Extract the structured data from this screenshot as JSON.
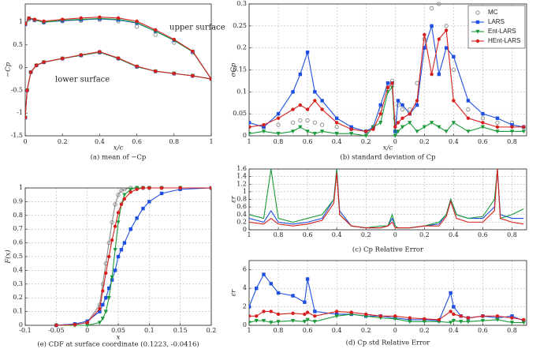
{
  "chart_data": [
    {
      "type": "line",
      "title": "(a) mean of −Cp",
      "xlabel": "x/c",
      "ylabel": "−Cp",
      "annotations": [
        "upper surface",
        "lower surface"
      ],
      "xlim": [
        0,
        1
      ],
      "xticks": [
        0,
        0.2,
        0.4,
        0.6,
        0.8,
        1
      ],
      "ylim": [
        -1.5,
        1.4
      ],
      "yticks": [
        -1.5,
        -1,
        -0.5,
        0,
        0.5,
        1
      ],
      "grid": false,
      "x": [
        0,
        0.01,
        0.03,
        0.06,
        0.1,
        0.2,
        0.3,
        0.4,
        0.5,
        0.6,
        0.7,
        0.8,
        0.9,
        1,
        0.9,
        0.8,
        0.7,
        0.6,
        0.5,
        0.4,
        0.3,
        0.2,
        0.1,
        0.05,
        0.02,
        0
      ],
      "series": [
        {
          "name": "MC",
          "color": "#888888",
          "marker": "circle-open",
          "line": false,
          "values": [
            -1.1,
            -0.5,
            -0.1,
            0.05,
            0.12,
            0.2,
            0.27,
            0.33,
            0.2,
            0.02,
            -0.08,
            -0.13,
            -0.18,
            -0.25,
            0.33,
            0.55,
            0.72,
            0.9,
            1.02,
            1.05,
            1.03,
            1.02,
            0.99,
            1.04,
            1.06,
            0.95
          ]
        },
        {
          "name": "LARS",
          "color": "#1f4fe0",
          "marker": "square",
          "line": true,
          "values": [
            -1.1,
            -0.5,
            -0.1,
            0.05,
            0.12,
            0.2,
            0.27,
            0.34,
            0.2,
            0.02,
            -0.08,
            -0.13,
            -0.18,
            -0.25,
            0.35,
            0.6,
            0.8,
            0.98,
            1.05,
            1.07,
            1.05,
            1.03,
            1.0,
            1.05,
            1.08,
            0.95
          ]
        },
        {
          "name": "Ent-LARS",
          "color": "#1a9a3a",
          "marker": "triangle",
          "line": true,
          "values": [
            -1.1,
            -0.5,
            -0.1,
            0.05,
            0.12,
            0.2,
            0.27,
            0.34,
            0.2,
            0.02,
            -0.08,
            -0.13,
            -0.18,
            -0.25,
            0.35,
            0.6,
            0.8,
            0.99,
            1.06,
            1.08,
            1.06,
            1.04,
            1.0,
            1.05,
            1.08,
            0.95
          ]
        },
        {
          "name": "HEnt-LARS",
          "color": "#d62020",
          "marker": "circle",
          "line": true,
          "values": [
            -1.1,
            -0.5,
            -0.1,
            0.05,
            0.12,
            0.2,
            0.28,
            0.35,
            0.21,
            0.03,
            -0.08,
            -0.13,
            -0.18,
            -0.25,
            0.36,
            0.62,
            0.83,
            1.02,
            1.09,
            1.11,
            1.09,
            1.06,
            1.02,
            1.06,
            1.09,
            0.96
          ]
        }
      ]
    },
    {
      "type": "line",
      "title": "(b) standard deviation of Cp",
      "xlabel": "x/c",
      "ylabel": "σCp",
      "legend": "upper right",
      "xlim": [
        -1,
        0.9
      ],
      "xticks": [
        {
          "value": -1,
          "label": "1"
        },
        {
          "value": -0.8,
          "label": "0.8"
        },
        {
          "value": -0.6,
          "label": "0.6"
        },
        {
          "value": -0.4,
          "label": "0.4"
        },
        {
          "value": -0.2,
          "label": "0.2"
        },
        0,
        0.2,
        0.4,
        0.6,
        0.8
      ],
      "ylim": [
        0,
        0.3
      ],
      "yticks": [
        0,
        0.05,
        0.1,
        0.15,
        0.2,
        0.25,
        0.3
      ],
      "grid": true,
      "x": [
        -1,
        -0.9,
        -0.8,
        -0.7,
        -0.65,
        -0.6,
        -0.55,
        -0.5,
        -0.4,
        -0.3,
        -0.2,
        -0.15,
        -0.1,
        -0.05,
        -0.02,
        0,
        0.02,
        0.05,
        0.1,
        0.15,
        0.2,
        0.25,
        0.3,
        0.35,
        0.4,
        0.5,
        0.6,
        0.7,
        0.8,
        0.88
      ],
      "series": [
        {
          "name": "MC",
          "color": "#888888",
          "marker": "circle-open",
          "line": false,
          "values": [
            0.02,
            0.02,
            0.025,
            0.03,
            0.035,
            0.035,
            0.03,
            0.025,
            0.02,
            0.015,
            0.01,
            0.02,
            0.06,
            0.11,
            0.125,
            0.04,
            0.07,
            0.06,
            0.06,
            0.12,
            0.22,
            0.29,
            0.3,
            0.25,
            0.15,
            0.06,
            0.04,
            0.03,
            0.03,
            0.02
          ]
        },
        {
          "name": "LARS",
          "color": "#1f4fe0",
          "marker": "square",
          "line": true,
          "values": [
            0.03,
            0.02,
            0.05,
            0.1,
            0.14,
            0.19,
            0.1,
            0.08,
            0.04,
            0.02,
            0.01,
            0.02,
            0.07,
            0.12,
            0.12,
            0.01,
            0.08,
            0.07,
            0.05,
            0.07,
            0.2,
            0.25,
            0.14,
            0.2,
            0.18,
            0.08,
            0.05,
            0.04,
            0.025,
            0.02
          ]
        },
        {
          "name": "Ent-LARS",
          "color": "#1a9a3a",
          "marker": "triangle",
          "line": true,
          "values": [
            0.005,
            0.01,
            0.005,
            0.01,
            0.02,
            0.01,
            0.005,
            0.01,
            0.005,
            0.005,
            0,
            0.02,
            0.03,
            0.1,
            0.11,
            0,
            0.01,
            0.02,
            0.03,
            0.01,
            0.02,
            0.03,
            0.02,
            0.01,
            0.03,
            0.01,
            0.02,
            0.01,
            0.01,
            0.01
          ]
        },
        {
          "name": "HEnt-LARS",
          "color": "#d62020",
          "marker": "circle",
          "line": true,
          "values": [
            0.02,
            0.025,
            0.04,
            0.06,
            0.07,
            0.06,
            0.08,
            0.06,
            0.03,
            0.015,
            0.01,
            0.015,
            0.05,
            0.11,
            0.12,
            0.02,
            0.03,
            0.04,
            0.05,
            0.08,
            0.23,
            0.14,
            0.22,
            0.24,
            0.08,
            0.04,
            0.03,
            0.02,
            0.02,
            0.02
          ]
        }
      ]
    },
    {
      "type": "line",
      "title": "(c) Cp Relative Error",
      "ylabel": "εr",
      "xlim": [
        -1,
        0.9
      ],
      "xticks": [
        {
          "value": -1,
          "label": "1"
        },
        {
          "value": -0.8,
          "label": "0.8"
        },
        {
          "value": -0.6,
          "label": "0.6"
        },
        {
          "value": -0.4,
          "label": "0.4"
        },
        {
          "value": -0.2,
          "label": "0.2"
        },
        0,
        0.2,
        0.4,
        0.6,
        0.8
      ],
      "ylim": [
        0,
        1.6
      ],
      "yticks": [
        0,
        0.2,
        0.4,
        0.6,
        0.8,
        1,
        1.2,
        1.4,
        1.6
      ],
      "grid": true,
      "x": [
        -1,
        -0.9,
        -0.85,
        -0.8,
        -0.7,
        -0.6,
        -0.5,
        -0.42,
        -0.4,
        -0.38,
        -0.3,
        -0.2,
        -0.1,
        -0.05,
        -0.02,
        0,
        0.02,
        0.1,
        0.2,
        0.3,
        0.35,
        0.38,
        0.42,
        0.5,
        0.6,
        0.68,
        0.7,
        0.72,
        0.8,
        0.88
      ],
      "series": [
        {
          "name": "LARS",
          "color": "#1f4fe0",
          "line": true,
          "values": [
            0.3,
            0.2,
            0.5,
            0.2,
            0.15,
            0.2,
            0.3,
            0.8,
            1.6,
            0.5,
            0.1,
            0.05,
            0.05,
            0.1,
            0.3,
            0.1,
            0.05,
            0.05,
            0.1,
            0.15,
            0.4,
            0.8,
            0.4,
            0.3,
            0.3,
            0.6,
            1.6,
            0.4,
            0.3,
            0.3
          ]
        },
        {
          "name": "Ent-LARS",
          "color": "#1a9a3a",
          "line": true,
          "values": [
            0.4,
            0.3,
            1.6,
            0.3,
            0.2,
            0.3,
            0.4,
            0.8,
            1.6,
            0.4,
            0.1,
            0.05,
            0.1,
            0.1,
            0.4,
            0.1,
            0.05,
            0.05,
            0.1,
            0.2,
            0.4,
            0.8,
            0.4,
            0.3,
            0.35,
            0.8,
            1.6,
            0.3,
            0.4,
            0.55
          ]
        },
        {
          "name": "HEnt-LARS",
          "color": "#d62020",
          "line": true,
          "values": [
            0.2,
            0.15,
            0.3,
            0.15,
            0.1,
            0.15,
            0.25,
            0.7,
            1.5,
            0.4,
            0.1,
            0.05,
            0.05,
            0.1,
            0.2,
            0.05,
            0.05,
            0.05,
            0.1,
            0.1,
            0.35,
            0.75,
            0.3,
            0.2,
            0.2,
            0.5,
            1.6,
            0.3,
            0.2,
            0.15
          ]
        }
      ]
    },
    {
      "type": "line",
      "title": "(d) Cp std Relative Error",
      "ylabel": "εr",
      "xlim": [
        -1,
        0.9
      ],
      "xticks": [
        {
          "value": -1,
          "label": "1"
        },
        {
          "value": -0.8,
          "label": "0.8"
        },
        {
          "value": -0.6,
          "label": "0.6"
        },
        {
          "value": -0.4,
          "label": "0.4"
        },
        {
          "value": -0.2,
          "label": "0.2"
        },
        0,
        0.2,
        0.4,
        0.6,
        0.8
      ],
      "ylim": [
        0,
        7
      ],
      "yticks": [
        0,
        2,
        4,
        6
      ],
      "grid": true,
      "x": [
        -1,
        -0.95,
        -0.9,
        -0.85,
        -0.8,
        -0.7,
        -0.62,
        -0.6,
        -0.55,
        -0.4,
        -0.3,
        -0.2,
        -0.1,
        0,
        0.1,
        0.2,
        0.3,
        0.38,
        0.4,
        0.45,
        0.5,
        0.6,
        0.7,
        0.8,
        0.88
      ],
      "series": [
        {
          "name": "LARS",
          "color": "#1f4fe0",
          "marker": "square",
          "line": true,
          "values": [
            2,
            4,
            5.5,
            4.5,
            3.5,
            3.2,
            2.5,
            5,
            1.5,
            1.2,
            1.2,
            1,
            1,
            0.8,
            0.6,
            0.6,
            0.5,
            3.5,
            2,
            1,
            0.8,
            1,
            0.8,
            1,
            0.5
          ]
        },
        {
          "name": "Ent-LARS",
          "color": "#1a9a3a",
          "marker": "triangle",
          "line": true,
          "values": [
            0.3,
            0.5,
            0.5,
            0.3,
            0.4,
            0.5,
            0.4,
            0.6,
            0.4,
            1,
            1.2,
            1,
            0.8,
            0.7,
            0.4,
            0.4,
            0.4,
            0.3,
            0.5,
            0.4,
            0.4,
            0.5,
            0.6,
            0.3,
            0.3
          ]
        },
        {
          "name": "HEnt-LARS",
          "color": "#d62020",
          "marker": "circle",
          "line": true,
          "values": [
            1,
            1,
            1.5,
            1.5,
            1.2,
            1.3,
            1.2,
            1.4,
            1,
            1.5,
            1.4,
            1.2,
            1,
            1,
            0.8,
            0.7,
            0.6,
            1.5,
            1.2,
            1,
            0.8,
            1,
            1,
            0.8,
            0.6
          ]
        }
      ]
    },
    {
      "type": "line",
      "title": "(e) CDF at surface coordinate (0.1223, -0.0416)",
      "xlabel": "x",
      "ylabel": "F(x)",
      "xlim": [
        -0.1,
        0.2
      ],
      "xticks": [
        -0.1,
        -0.05,
        0,
        0.05,
        0.1,
        0.15,
        0.2
      ],
      "ylim": [
        0,
        1
      ],
      "yticks": [
        0,
        0.1,
        0.2,
        0.3,
        0.4,
        0.5,
        0.6,
        0.7,
        0.8,
        0.9,
        1
      ],
      "grid": true,
      "x": [
        -0.05,
        -0.02,
        0,
        0.02,
        0.025,
        0.03,
        0.035,
        0.04,
        0.045,
        0.05,
        0.055,
        0.06,
        0.07,
        0.08,
        0.09,
        0.1,
        0.12,
        0.15,
        0.2
      ],
      "series": [
        {
          "name": "MC",
          "color": "#888888",
          "marker": "circle-open",
          "line": true,
          "values": [
            0,
            0.005,
            0.02,
            0.15,
            0.3,
            0.45,
            0.6,
            0.75,
            0.88,
            0.95,
            0.98,
            0.99,
            1,
            1,
            1,
            1,
            1,
            1,
            1
          ]
        },
        {
          "name": "LARS",
          "color": "#1f4fe0",
          "marker": "square",
          "line": true,
          "values": [
            0,
            0.01,
            0.03,
            0.1,
            0.15,
            0.2,
            0.27,
            0.33,
            0.4,
            0.5,
            0.55,
            0.6,
            0.7,
            0.78,
            0.85,
            0.9,
            0.96,
            0.99,
            1
          ]
        },
        {
          "name": "Ent-LARS",
          "color": "#1a9a3a",
          "marker": "triangle",
          "line": true,
          "values": [
            0,
            0,
            0,
            0.02,
            0.05,
            0.1,
            0.2,
            0.35,
            0.55,
            0.75,
            0.88,
            0.95,
            0.99,
            1,
            1,
            1,
            1,
            1,
            1
          ]
        },
        {
          "name": "HEnt-LARS",
          "color": "#d62020",
          "marker": "circle",
          "line": true,
          "values": [
            0,
            0.005,
            0.02,
            0.12,
            0.25,
            0.38,
            0.5,
            0.62,
            0.72,
            0.82,
            0.88,
            0.92,
            0.97,
            0.99,
            1,
            1,
            1,
            1,
            1
          ]
        }
      ]
    }
  ]
}
